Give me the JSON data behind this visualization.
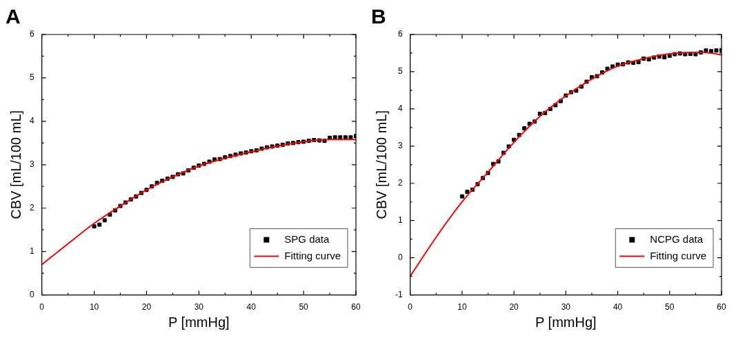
{
  "chart_data": [
    {
      "type": "line",
      "title": "A",
      "xlabel": "P [mmHg]",
      "ylabel": "CBV [mL/100 mL]",
      "xlim": [
        0,
        60
      ],
      "ylim": [
        0,
        6
      ],
      "xticks": [
        0,
        {
          "value": 5,
          "label": null
        },
        10,
        {
          "value": 15,
          "label": null
        },
        20,
        {
          "value": 25,
          "label": null
        },
        30,
        {
          "value": 35,
          "label": null
        },
        40,
        {
          "value": 45,
          "label": null
        },
        50,
        {
          "value": 55,
          "label": null
        },
        60
      ],
      "yticks": [
        0,
        {
          "value": 0.5,
          "label": null
        },
        1,
        {
          "value": 1.5,
          "label": null
        },
        2,
        {
          "value": 2.5,
          "label": null
        },
        3,
        {
          "value": 3.5,
          "label": null
        },
        4,
        {
          "value": 4.5,
          "label": null
        },
        5,
        {
          "value": 5.5,
          "label": null
        },
        6
      ],
      "legend": "bottom right",
      "series": [
        {
          "name": "SPG data",
          "type": "scatter",
          "marker": "square",
          "color": "#000000",
          "x": [
            10,
            11,
            12,
            13,
            14,
            15,
            16,
            17,
            18,
            19,
            20,
            21,
            22,
            23,
            24,
            25,
            26,
            27,
            28,
            29,
            30,
            31,
            32,
            33,
            34,
            35,
            36,
            37,
            38,
            39,
            40,
            41,
            42,
            43,
            44,
            45,
            46,
            47,
            48,
            49,
            50,
            51,
            52,
            53,
            54,
            55,
            56,
            57,
            58,
            59,
            60
          ],
          "values": [
            1.58,
            1.62,
            1.72,
            1.85,
            1.95,
            2.05,
            2.13,
            2.2,
            2.27,
            2.35,
            2.42,
            2.5,
            2.58,
            2.63,
            2.68,
            2.72,
            2.78,
            2.8,
            2.87,
            2.93,
            2.98,
            3.02,
            3.07,
            3.12,
            3.13,
            3.17,
            3.2,
            3.23,
            3.26,
            3.28,
            3.31,
            3.33,
            3.37,
            3.4,
            3.42,
            3.44,
            3.46,
            3.49,
            3.5,
            3.52,
            3.53,
            3.55,
            3.57,
            3.56,
            3.55,
            3.62,
            3.63,
            3.63,
            3.63,
            3.63,
            3.66
          ]
        },
        {
          "name": "Fitting curve",
          "type": "line",
          "color": "#ff0000",
          "x": [
            0,
            5,
            10,
            15,
            20,
            25,
            30,
            35,
            40,
            45,
            50,
            55,
            60
          ],
          "values": [
            0.7,
            1.18,
            1.65,
            2.05,
            2.42,
            2.72,
            2.97,
            3.15,
            3.3,
            3.43,
            3.53,
            3.58,
            3.58
          ]
        }
      ]
    },
    {
      "type": "line",
      "title": "B",
      "xlabel": "P [mmHg]",
      "ylabel": "CBV [mL/100 mL]",
      "xlim": [
        0,
        60
      ],
      "ylim": [
        -1,
        6
      ],
      "xticks": [
        0,
        {
          "value": 5,
          "label": null
        },
        10,
        {
          "value": 15,
          "label": null
        },
        20,
        {
          "value": 25,
          "label": null
        },
        30,
        {
          "value": 35,
          "label": null
        },
        40,
        {
          "value": 45,
          "label": null
        },
        50,
        {
          "value": 55,
          "label": null
        },
        60
      ],
      "yticks": [
        -1,
        {
          "value": -0.5,
          "label": null
        },
        0,
        {
          "value": 0.5,
          "label": null
        },
        1,
        {
          "value": 1.5,
          "label": null
        },
        2,
        {
          "value": 2.5,
          "label": null
        },
        3,
        {
          "value": 3.5,
          "label": null
        },
        4,
        {
          "value": 4.5,
          "label": null
        },
        5,
        {
          "value": 5.5,
          "label": null
        },
        6
      ],
      "legend": "bottom right",
      "series": [
        {
          "name": "NCPG data",
          "type": "scatter",
          "marker": "square",
          "color": "#000000",
          "x": [
            10,
            11,
            12,
            13,
            14,
            15,
            16,
            17,
            18,
            19,
            20,
            21,
            22,
            23,
            24,
            25,
            26,
            27,
            28,
            29,
            30,
            31,
            32,
            33,
            34,
            35,
            36,
            37,
            38,
            39,
            40,
            41,
            42,
            43,
            44,
            45,
            46,
            47,
            48,
            49,
            50,
            51,
            52,
            53,
            54,
            55,
            56,
            57,
            58,
            59,
            60
          ],
          "values": [
            1.65,
            1.77,
            1.83,
            1.98,
            2.14,
            2.28,
            2.52,
            2.59,
            2.82,
            2.99,
            3.17,
            3.3,
            3.48,
            3.6,
            3.66,
            3.87,
            3.89,
            4.0,
            4.1,
            4.21,
            4.36,
            4.45,
            4.49,
            4.6,
            4.73,
            4.85,
            4.88,
            4.98,
            5.08,
            5.14,
            5.19,
            5.2,
            5.25,
            5.24,
            5.26,
            5.35,
            5.33,
            5.38,
            5.41,
            5.39,
            5.43,
            5.47,
            5.49,
            5.47,
            5.48,
            5.47,
            5.52,
            5.57,
            5.55,
            5.57,
            5.58
          ]
        },
        {
          "name": "Fitting curve",
          "type": "line",
          "color": "#ff0000",
          "x": [
            0,
            5,
            10,
            15,
            20,
            25,
            30,
            35,
            40,
            45,
            50,
            55,
            58,
            60
          ],
          "values": [
            -0.5,
            0.55,
            1.5,
            2.3,
            3.1,
            3.8,
            4.35,
            4.8,
            5.15,
            5.35,
            5.48,
            5.52,
            5.5,
            5.45
          ]
        }
      ]
    }
  ]
}
